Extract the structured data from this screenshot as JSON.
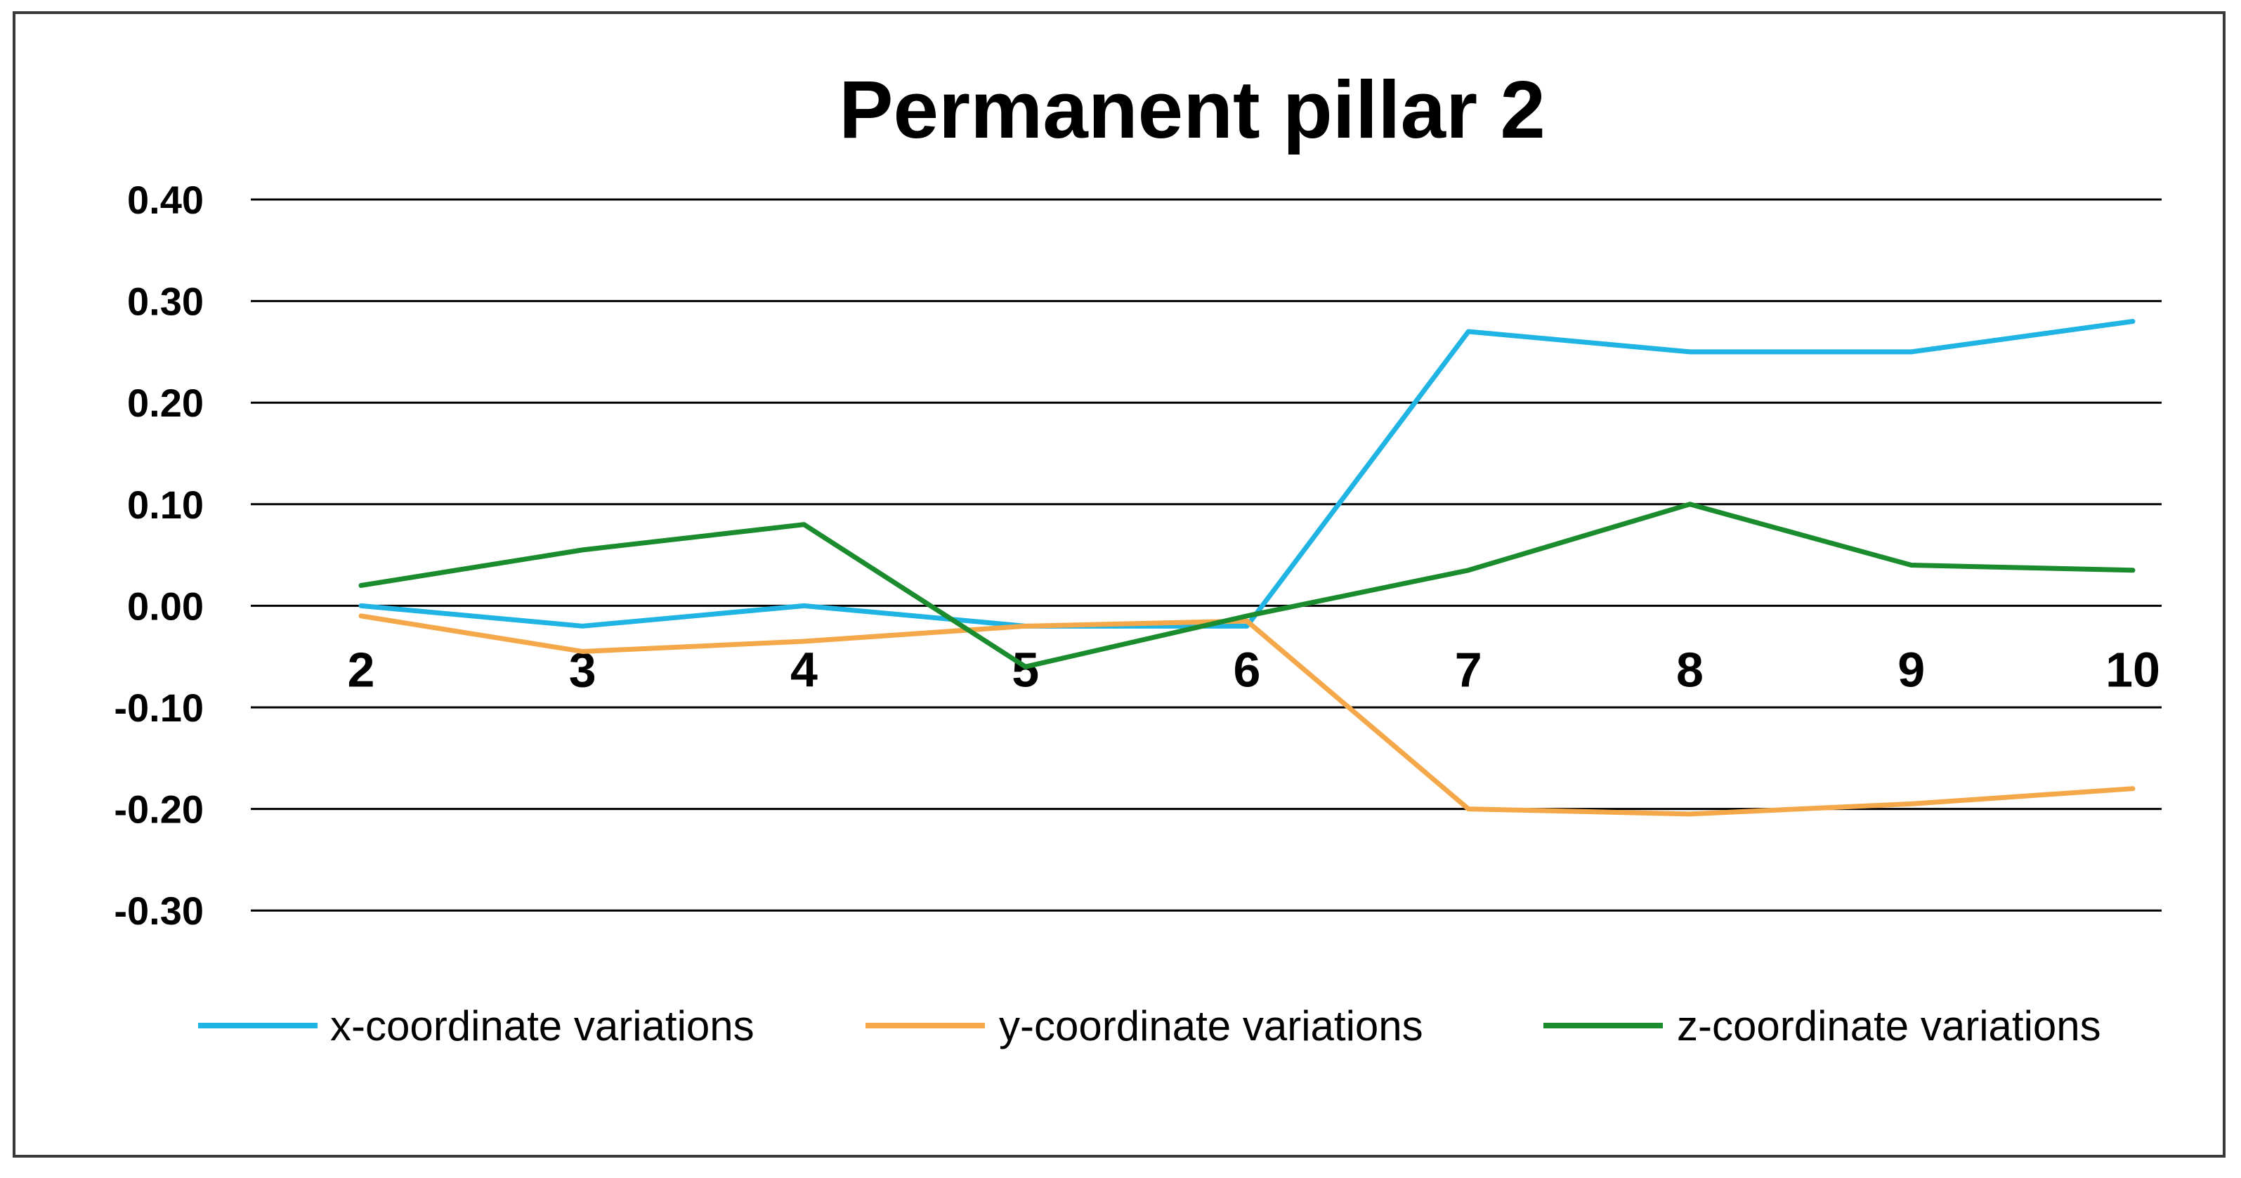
{
  "chart_data": {
    "type": "line",
    "title": "Permanent pillar 2",
    "xlabel": "",
    "ylabel": "",
    "x": [
      2,
      3,
      4,
      5,
      6,
      7,
      8,
      9,
      10
    ],
    "x_tick_labels": [
      "2",
      "3",
      "4",
      "5",
      "6",
      "7",
      "8",
      "9",
      "10"
    ],
    "ylim": [
      -0.3,
      0.4
    ],
    "y_ticks": [
      0.4,
      0.3,
      0.2,
      0.1,
      0.0,
      -0.1,
      -0.2,
      -0.3
    ],
    "y_tick_labels": [
      "0.40",
      "0.30",
      "0.20",
      "0.10",
      "0.00",
      "-0.10",
      "-0.20",
      "-0.30"
    ],
    "grid": true,
    "legend_position": "bottom",
    "series": [
      {
        "name": "x-coordinate variations",
        "color": "#1fb4e3",
        "values": [
          0.0,
          -0.02,
          0.0,
          -0.02,
          -0.02,
          0.27,
          0.25,
          0.25,
          0.28
        ]
      },
      {
        "name": "y-coordinate variations",
        "color": "#f5a84a",
        "values": [
          -0.01,
          -0.045,
          -0.035,
          -0.02,
          -0.015,
          -0.2,
          -0.205,
          -0.195,
          -0.18
        ]
      },
      {
        "name": "z-coordinate variations",
        "color": "#1b8c2e",
        "values": [
          0.02,
          0.055,
          0.08,
          -0.06,
          -0.01,
          0.035,
          0.1,
          0.04,
          0.035
        ]
      }
    ]
  }
}
